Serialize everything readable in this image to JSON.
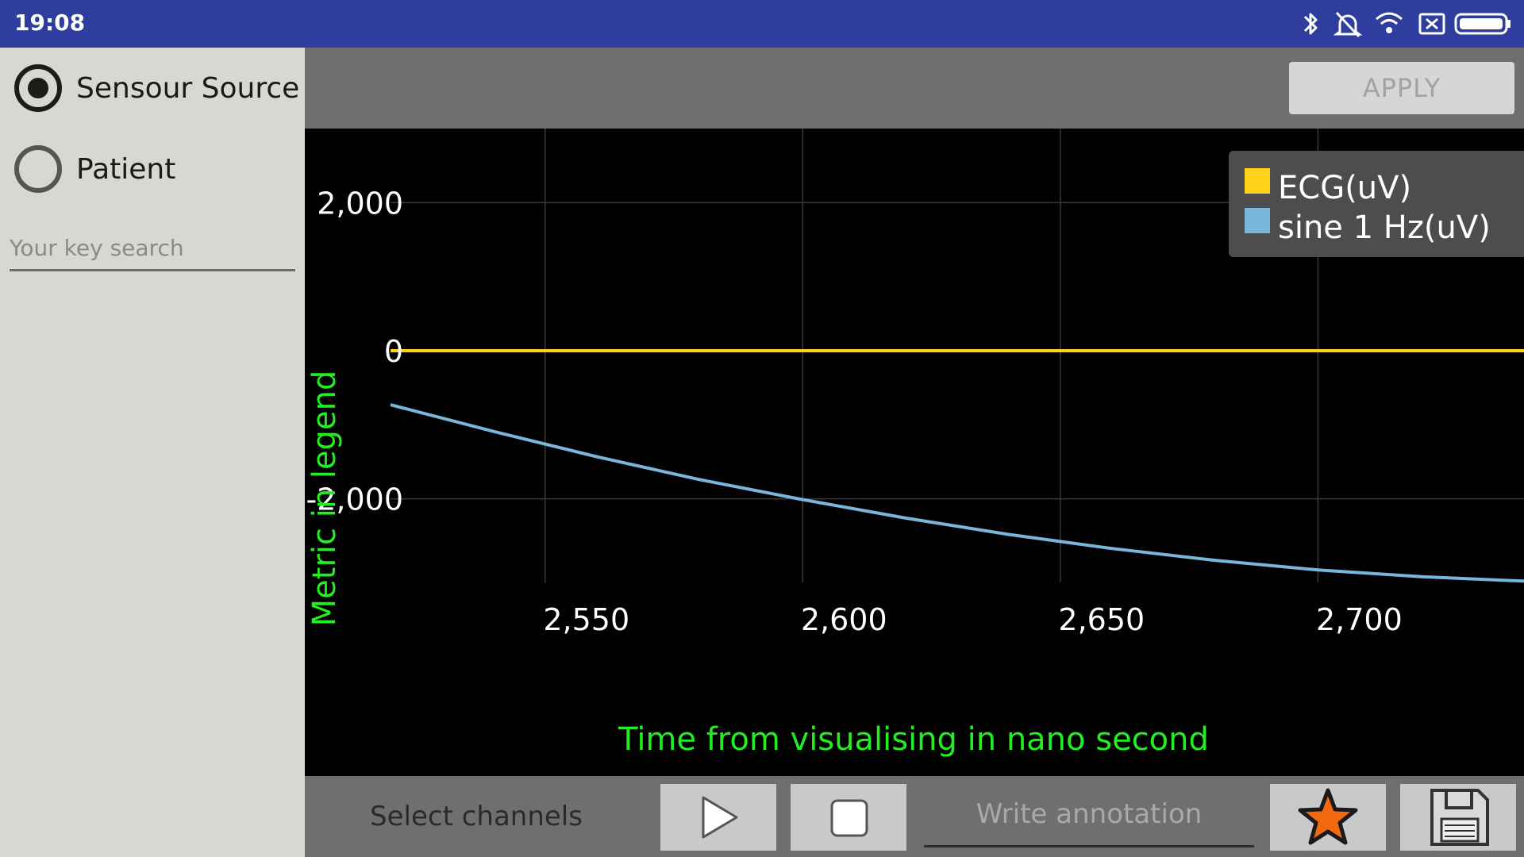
{
  "status_bar": {
    "time": "19:08",
    "icons": [
      "bluetooth-icon",
      "alarm-off-icon",
      "wifi-icon",
      "sim-disabled-icon",
      "battery-icon"
    ]
  },
  "sidebar": {
    "radios": [
      {
        "label": "Sensour Source",
        "checked": true
      },
      {
        "label": "Patient",
        "checked": false
      }
    ],
    "search": {
      "placeholder": "Your key search",
      "value": ""
    }
  },
  "toolbar": {
    "apply_label": "APPLY"
  },
  "bottom_bar": {
    "select_channels_label": "Select channels",
    "annotation_placeholder": "Write annotation",
    "icons": [
      "play-icon",
      "stop-icon",
      "star-icon",
      "save-icon"
    ]
  },
  "colors": {
    "ecg": "#ffd11a",
    "sine": "#7ab6db",
    "axis_label": "#22ee22"
  },
  "chart_data": {
    "type": "line",
    "xlabel": "Time from visualising in nano second",
    "ylabel": "Metric in legend",
    "xlim": [
      2520,
      2740
    ],
    "ylim": [
      -3300,
      3000
    ],
    "x_ticks": [
      2550,
      2600,
      2650,
      2700
    ],
    "x_tick_labels": [
      "2,550",
      "2,600",
      "2,650",
      "2,700"
    ],
    "y_ticks": [
      2000,
      0,
      -2000
    ],
    "y_tick_labels": [
      "2,000",
      "0",
      "-2,000"
    ],
    "grid": true,
    "legend": "top-right",
    "series": [
      {
        "name": "ECG(uV)",
        "color": "#ffd11a",
        "x": [
          2520,
          2740
        ],
        "y": [
          0,
          0
        ]
      },
      {
        "name": "sine 1 Hz(uV)",
        "color": "#7ab6db",
        "x": [
          2520,
          2540,
          2560,
          2580,
          2600,
          2620,
          2640,
          2660,
          2680,
          2700,
          2720,
          2740
        ],
        "y": [
          -730,
          -1090,
          -1430,
          -1740,
          -2010,
          -2260,
          -2480,
          -2670,
          -2830,
          -2960,
          -3050,
          -3110
        ]
      }
    ]
  }
}
